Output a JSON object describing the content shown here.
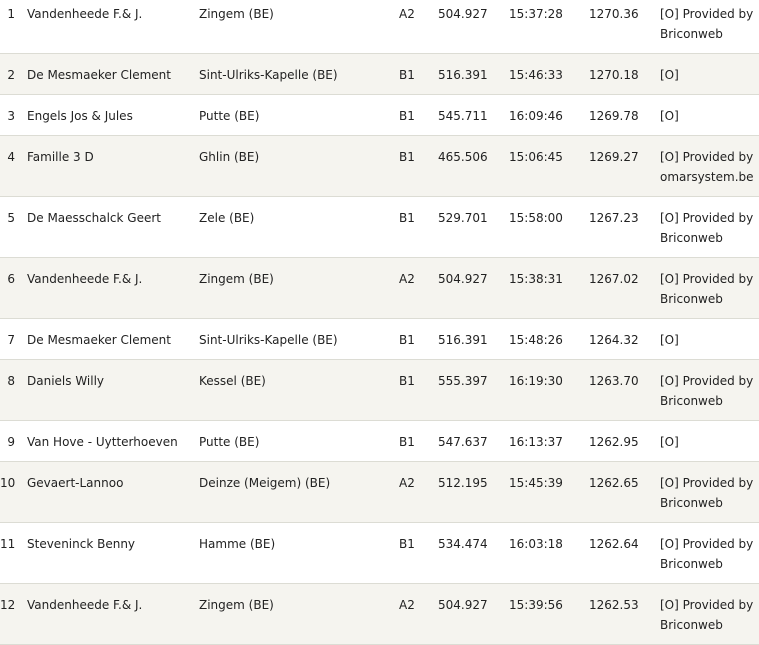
{
  "results": {
    "rows": [
      {
        "pos": "1",
        "name": "Vandenheede F.& J.",
        "place": "Zingem (BE)",
        "cat": "A2",
        "dist": "504.927",
        "time": "15:37:28",
        "speed": "1270.36",
        "note": "[O] Provided by Briconweb"
      },
      {
        "pos": "2",
        "name": "De Mesmaeker Clement",
        "place": "Sint-Ulriks-Kapelle (BE)",
        "cat": "B1",
        "dist": "516.391",
        "time": "15:46:33",
        "speed": "1270.18",
        "note": "[O]"
      },
      {
        "pos": "3",
        "name": "Engels Jos & Jules",
        "place": "Putte (BE)",
        "cat": "B1",
        "dist": "545.711",
        "time": "16:09:46",
        "speed": "1269.78",
        "note": "[O]"
      },
      {
        "pos": "4",
        "name": "Famille 3 D",
        "place": "Ghlin (BE)",
        "cat": "B1",
        "dist": "465.506",
        "time": "15:06:45",
        "speed": "1269.27",
        "note": "[O] Provided by omarsystem.be"
      },
      {
        "pos": "5",
        "name": "De Maesschalck Geert",
        "place": "Zele (BE)",
        "cat": "B1",
        "dist": "529.701",
        "time": "15:58:00",
        "speed": "1267.23",
        "note": "[O] Provided by Briconweb"
      },
      {
        "pos": "6",
        "name": "Vandenheede F.& J.",
        "place": "Zingem (BE)",
        "cat": "A2",
        "dist": "504.927",
        "time": "15:38:31",
        "speed": "1267.02",
        "note": "[O] Provided by Briconweb"
      },
      {
        "pos": "7",
        "name": "De Mesmaeker Clement",
        "place": "Sint-Ulriks-Kapelle (BE)",
        "cat": "B1",
        "dist": "516.391",
        "time": "15:48:26",
        "speed": "1264.32",
        "note": "[O]"
      },
      {
        "pos": "8",
        "name": "Daniels Willy",
        "place": "Kessel (BE)",
        "cat": "B1",
        "dist": "555.397",
        "time": "16:19:30",
        "speed": "1263.70",
        "note": "[O] Provided by Briconweb"
      },
      {
        "pos": "9",
        "name": "Van Hove - Uytterhoeven",
        "place": "Putte (BE)",
        "cat": "B1",
        "dist": "547.637",
        "time": "16:13:37",
        "speed": "1262.95",
        "note": "[O]"
      },
      {
        "pos": "10",
        "name": "Gevaert-Lannoo",
        "place": "Deinze (Meigem) (BE)",
        "cat": "A2",
        "dist": "512.195",
        "time": "15:45:39",
        "speed": "1262.65",
        "note": "[O] Provided by Briconweb"
      },
      {
        "pos": "11",
        "name": "Steveninck Benny",
        "place": "Hamme (BE)",
        "cat": "B1",
        "dist": "534.474",
        "time": "16:03:18",
        "speed": "1262.64",
        "note": "[O] Provided by Briconweb"
      },
      {
        "pos": "12",
        "name": "Vandenheede F.& J.",
        "place": "Zingem (BE)",
        "cat": "A2",
        "dist": "504.927",
        "time": "15:39:56",
        "speed": "1262.53",
        "note": "[O] Provided by Briconweb"
      }
    ]
  },
  "colors": {
    "row_alt_bg": "#f5f4ef",
    "row_border": "#dcdcd4",
    "text": "#222222"
  }
}
